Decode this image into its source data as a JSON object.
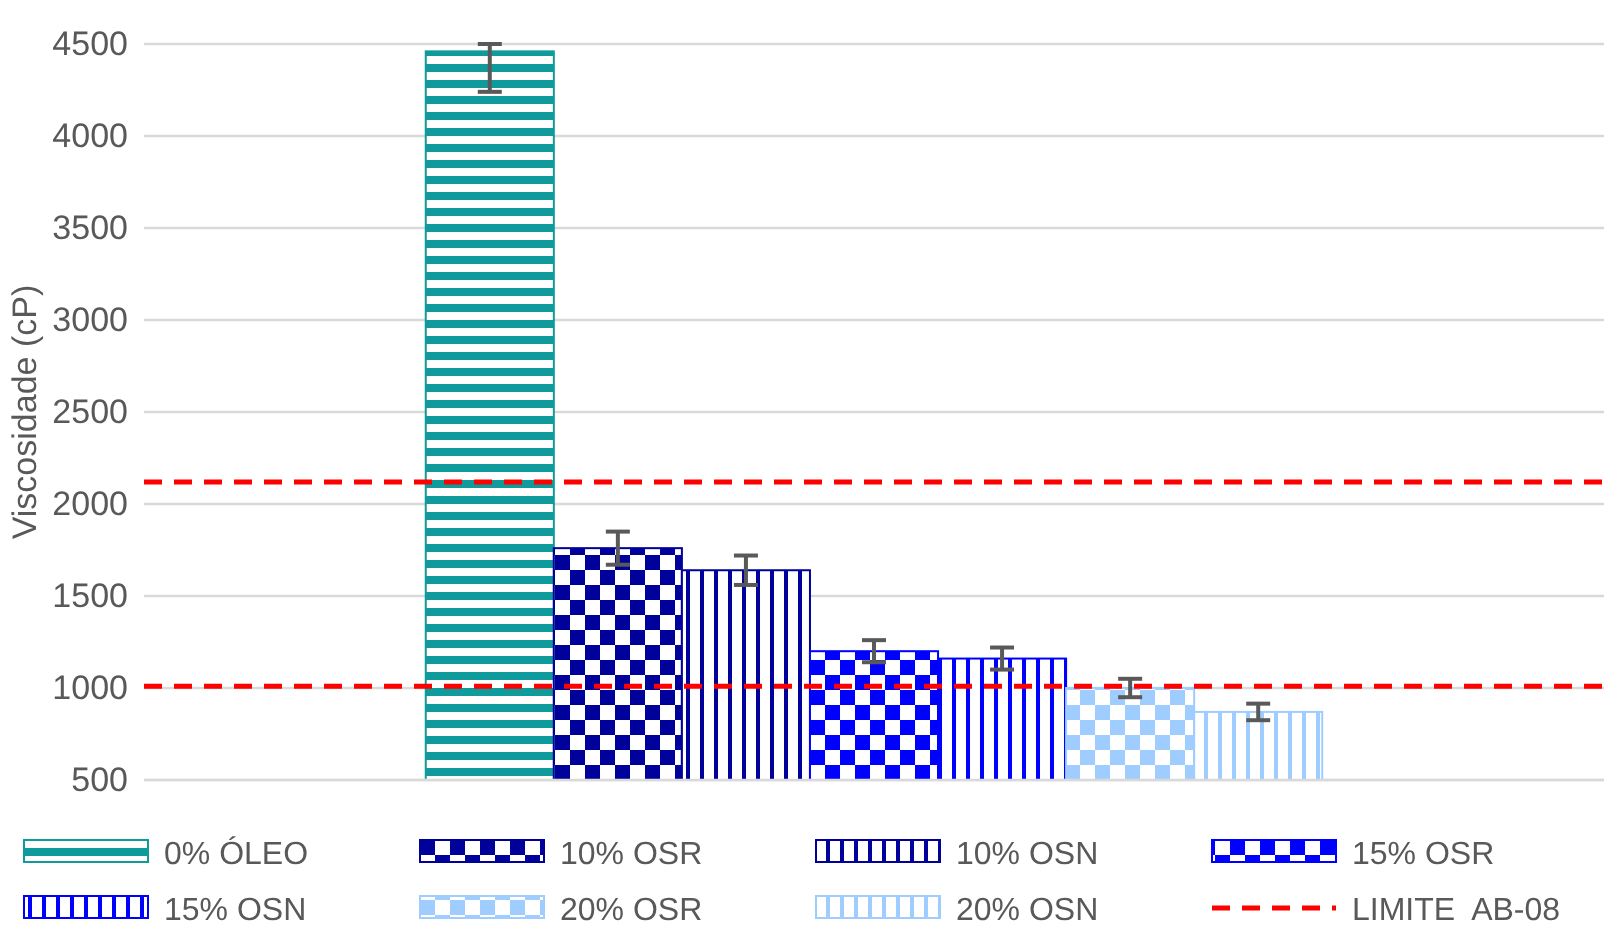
{
  "chart_data": {
    "type": "bar",
    "ylabel": "Viscosidade (cP)",
    "categories": [
      null
    ],
    "series": [
      {
        "name": "0% ÓLEO",
        "color": "#0f9b9b",
        "values": [
          4460
        ],
        "errors": [
          [
            4240,
            4500
          ]
        ]
      },
      {
        "name": "10% OSR",
        "color": "#00009a",
        "values": [
          1760
        ],
        "errors": [
          90
        ]
      },
      {
        "name": "10% OSN",
        "color": "#00009a",
        "values": [
          1640
        ],
        "errors": [
          80
        ]
      },
      {
        "name": "15% OSR",
        "color": "#0000ff",
        "values": [
          1200
        ],
        "errors": [
          60
        ]
      },
      {
        "name": "15% OSN",
        "color": "#0000ff",
        "values": [
          1160
        ],
        "errors": [
          60
        ]
      },
      {
        "name": "20% OSR",
        "color": "#9fcdff",
        "values": [
          1000
        ],
        "errors": [
          50
        ]
      },
      {
        "name": "20% OSN",
        "color": "#9fcdff",
        "values": [
          870
        ],
        "errors": [
          45
        ]
      }
    ],
    "ylim": [
      500,
      4500
    ],
    "yticks": [
      500,
      1000,
      1500,
      2000,
      2500,
      3000,
      3500,
      4000,
      4500
    ],
    "grid": "y",
    "legend": "bottom",
    "ref_lines": [
      {
        "axis": "y",
        "value": 2120,
        "label": "LIMITE  AB-08",
        "color": "#ff0000",
        "line_style": "dashed"
      },
      {
        "axis": "y",
        "value": 1010,
        "color": "#ff0000",
        "line_style": "dashed"
      }
    ]
  }
}
